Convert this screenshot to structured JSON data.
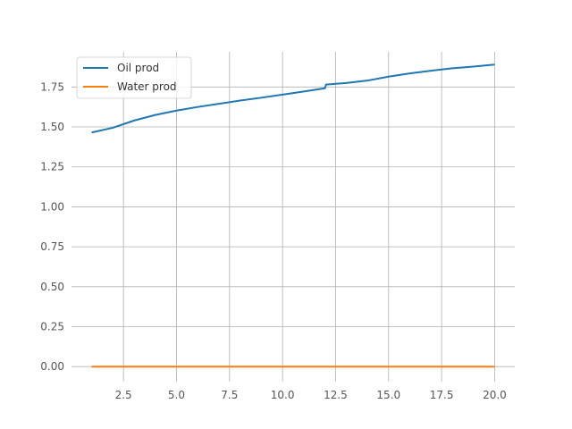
{
  "chart_data": {
    "type": "line",
    "title": "",
    "xlabel": "",
    "ylabel": "",
    "xlim": [
      0.05,
      20.95
    ],
    "ylim": [
      -0.094,
      1.97
    ],
    "grid": true,
    "legend_position": "top-left",
    "x_ticks": [
      2.5,
      5.0,
      7.5,
      10.0,
      12.5,
      15.0,
      17.5,
      20.0
    ],
    "x_tick_labels": [
      "2.5",
      "5.0",
      "7.5",
      "10.0",
      "12.5",
      "15.0",
      "17.5",
      "20.0"
    ],
    "y_ticks": [
      0.0,
      0.25,
      0.5,
      0.75,
      1.0,
      1.25,
      1.5,
      1.75
    ],
    "y_tick_labels": [
      "0.00",
      "0.25",
      "0.50",
      "0.75",
      "1.00",
      "1.25",
      "1.50",
      "1.75"
    ],
    "series": [
      {
        "name": "Oil prod",
        "color": "#1f77b4",
        "x": [
          1,
          2,
          3,
          4,
          5,
          6,
          7,
          8,
          9,
          10,
          11,
          12,
          12.05,
          13,
          14,
          15,
          16,
          17,
          18,
          19,
          20
        ],
        "y": [
          1.465,
          1.495,
          1.54,
          1.575,
          1.602,
          1.625,
          1.645,
          1.665,
          1.683,
          1.702,
          1.722,
          1.742,
          1.765,
          1.775,
          1.79,
          1.815,
          1.835,
          1.852,
          1.867,
          1.878,
          1.89
        ]
      },
      {
        "name": "Water prod",
        "color": "#ff7f0e",
        "x": [
          1,
          2,
          3,
          4,
          5,
          6,
          7,
          8,
          9,
          10,
          11,
          12,
          13,
          14,
          15,
          16,
          17,
          18,
          19,
          20
        ],
        "y": [
          0,
          0,
          0,
          0,
          0,
          0,
          0,
          0,
          0,
          0,
          0,
          0,
          0,
          0,
          0,
          0,
          0,
          0,
          0,
          0
        ]
      }
    ]
  }
}
